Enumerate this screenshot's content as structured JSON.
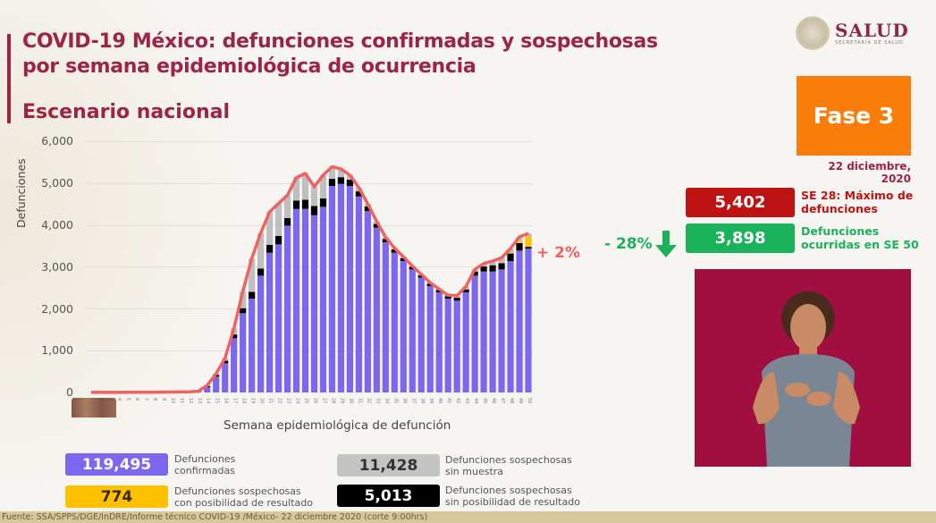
{
  "header": {
    "title_line1": "COVID-19 México: defunciones confirmadas y sospechosas",
    "title_line2": "por semana epidemiológica de ocurrencia",
    "subtitle": "Escenario nacional"
  },
  "logo": {
    "main": "SALUD",
    "sub": "SECRETARÍA DE SALUD",
    "icon": "national-seal-icon"
  },
  "phase": {
    "label": "Fase 3",
    "color": "#f97d08"
  },
  "date": "22 diciembre, 2020",
  "stats": {
    "max": {
      "value": "5,402",
      "label_line1": "SE 28: Máximo de",
      "label_line2": "defunciones",
      "color": "#bf1213"
    },
    "current": {
      "value": "3,898",
      "label_line1": "Defunciones",
      "label_line2": "ocurridas en SE 50",
      "color": "#1ab25b"
    },
    "change": {
      "value": "- 28%",
      "icon": "arrow-down-icon"
    }
  },
  "chart_annotation": "+ 2%",
  "legend": [
    {
      "value": "119,495",
      "label_line1": "Defunciones",
      "label_line2": "confirmadas",
      "color": "#7b68ee"
    },
    {
      "value": "774",
      "label_line1": "Defunciones sospechosas",
      "label_line2": "con posibilidad de resultado",
      "color": "#ffc000"
    },
    {
      "value": "11,428",
      "label_line1": "Defunciones sospechosas",
      "label_line2": "sin muestra",
      "color": "#bfbfbf"
    },
    {
      "value": "5,013",
      "label_line1": "Defunciones sospechosas",
      "label_line2": "sin posibilidad de resultado",
      "color": "#000000"
    }
  ],
  "footer": "Fuente: SSA/SPPS/DGE/InDRE/Informe técnico COVID-19 /México- 22 diciembre 2020 (corte 9:00hrs)",
  "chart_data": {
    "type": "bar",
    "stacked": true,
    "title": "COVID-19 México: defunciones confirmadas y sospechosas por semana epidemiológica de ocurrencia",
    "xlabel": "Semana epidemiológica de defunción",
    "ylabel": "Defunciones",
    "ylim": [
      0,
      6000
    ],
    "yticks": [
      "0",
      "1,000",
      "2,000",
      "3,000",
      "4,000",
      "5,000",
      "6,000"
    ],
    "grid": true,
    "categories": [
      "1",
      "2",
      "3",
      "4",
      "5",
      "6",
      "7",
      "8",
      "9",
      "10",
      "11",
      "12",
      "13",
      "14",
      "15",
      "16",
      "17",
      "18",
      "19",
      "20",
      "21",
      "22",
      "23",
      "24",
      "25",
      "26",
      "27",
      "28",
      "29",
      "30",
      "31",
      "32",
      "33",
      "34",
      "35",
      "36",
      "37",
      "38",
      "39",
      "40",
      "41",
      "42",
      "43",
      "44",
      "45",
      "46",
      "47",
      "48",
      "49",
      "50"
    ],
    "series": [
      {
        "name": "Defunciones confirmadas",
        "color": "#7b68ee",
        "values": [
          2,
          3,
          3,
          3,
          4,
          5,
          5,
          6,
          8,
          10,
          12,
          15,
          25,
          130,
          380,
          700,
          1300,
          1900,
          2250,
          2800,
          3350,
          3550,
          4000,
          4400,
          4400,
          4250,
          4450,
          4950,
          5000,
          4950,
          4700,
          4350,
          3950,
          3600,
          3350,
          3150,
          2950,
          2750,
          2550,
          2400,
          2250,
          2200,
          2400,
          2800,
          2900,
          2900,
          2950,
          3150,
          3400,
          3450
        ]
      },
      {
        "name": "Defunciones sospechosas sin posibilidad de resultado",
        "color": "#000000",
        "values": [
          0,
          0,
          0,
          0,
          0,
          0,
          0,
          0,
          0,
          0,
          0,
          0,
          0,
          20,
          40,
          60,
          90,
          120,
          160,
          170,
          190,
          200,
          180,
          200,
          220,
          220,
          200,
          170,
          160,
          150,
          120,
          110,
          90,
          80,
          80,
          70,
          60,
          60,
          60,
          60,
          60,
          70,
          70,
          100,
          120,
          150,
          150,
          180,
          180,
          40
        ]
      },
      {
        "name": "Defunciones sospechosas sin muestra",
        "color": "#bfbfbf",
        "values": [
          0,
          0,
          0,
          0,
          0,
          0,
          0,
          0,
          0,
          0,
          0,
          0,
          5,
          20,
          30,
          60,
          150,
          400,
          800,
          850,
          790,
          780,
          550,
          550,
          630,
          460,
          560,
          290,
          200,
          110,
          90,
          60,
          60,
          40,
          30,
          30,
          20,
          20,
          20,
          20,
          20,
          50,
          70,
          50,
          70,
          100,
          120,
          100,
          110,
          70
        ]
      },
      {
        "name": "Defunciones sospechosas con posibilidad de resultado",
        "color": "#ffc000",
        "values": [
          0,
          0,
          0,
          0,
          0,
          0,
          0,
          0,
          0,
          0,
          0,
          0,
          0,
          0,
          0,
          0,
          0,
          0,
          0,
          0,
          0,
          0,
          0,
          0,
          0,
          0,
          0,
          0,
          0,
          0,
          0,
          0,
          0,
          0,
          0,
          0,
          0,
          0,
          0,
          0,
          0,
          0,
          0,
          0,
          0,
          0,
          10,
          20,
          40,
          250
        ]
      }
    ],
    "line": {
      "name": "Total",
      "color": "#f06262",
      "values": [
        2,
        3,
        3,
        3,
        4,
        5,
        5,
        6,
        8,
        10,
        12,
        15,
        30,
        170,
        450,
        820,
        1540,
        2420,
        3210,
        3820,
        4330,
        4530,
        4730,
        5150,
        5250,
        4930,
        5210,
        5410,
        5360,
        5210,
        4910,
        4520,
        4100,
        3720,
        3460,
        3250,
        3030,
        2830,
        2630,
        2480,
        2330,
        2320,
        2540,
        2950,
        3090,
        3150,
        3230,
        3450,
        3730,
        3810
      ]
    },
    "annotations": [
      "+ 2%"
    ]
  }
}
